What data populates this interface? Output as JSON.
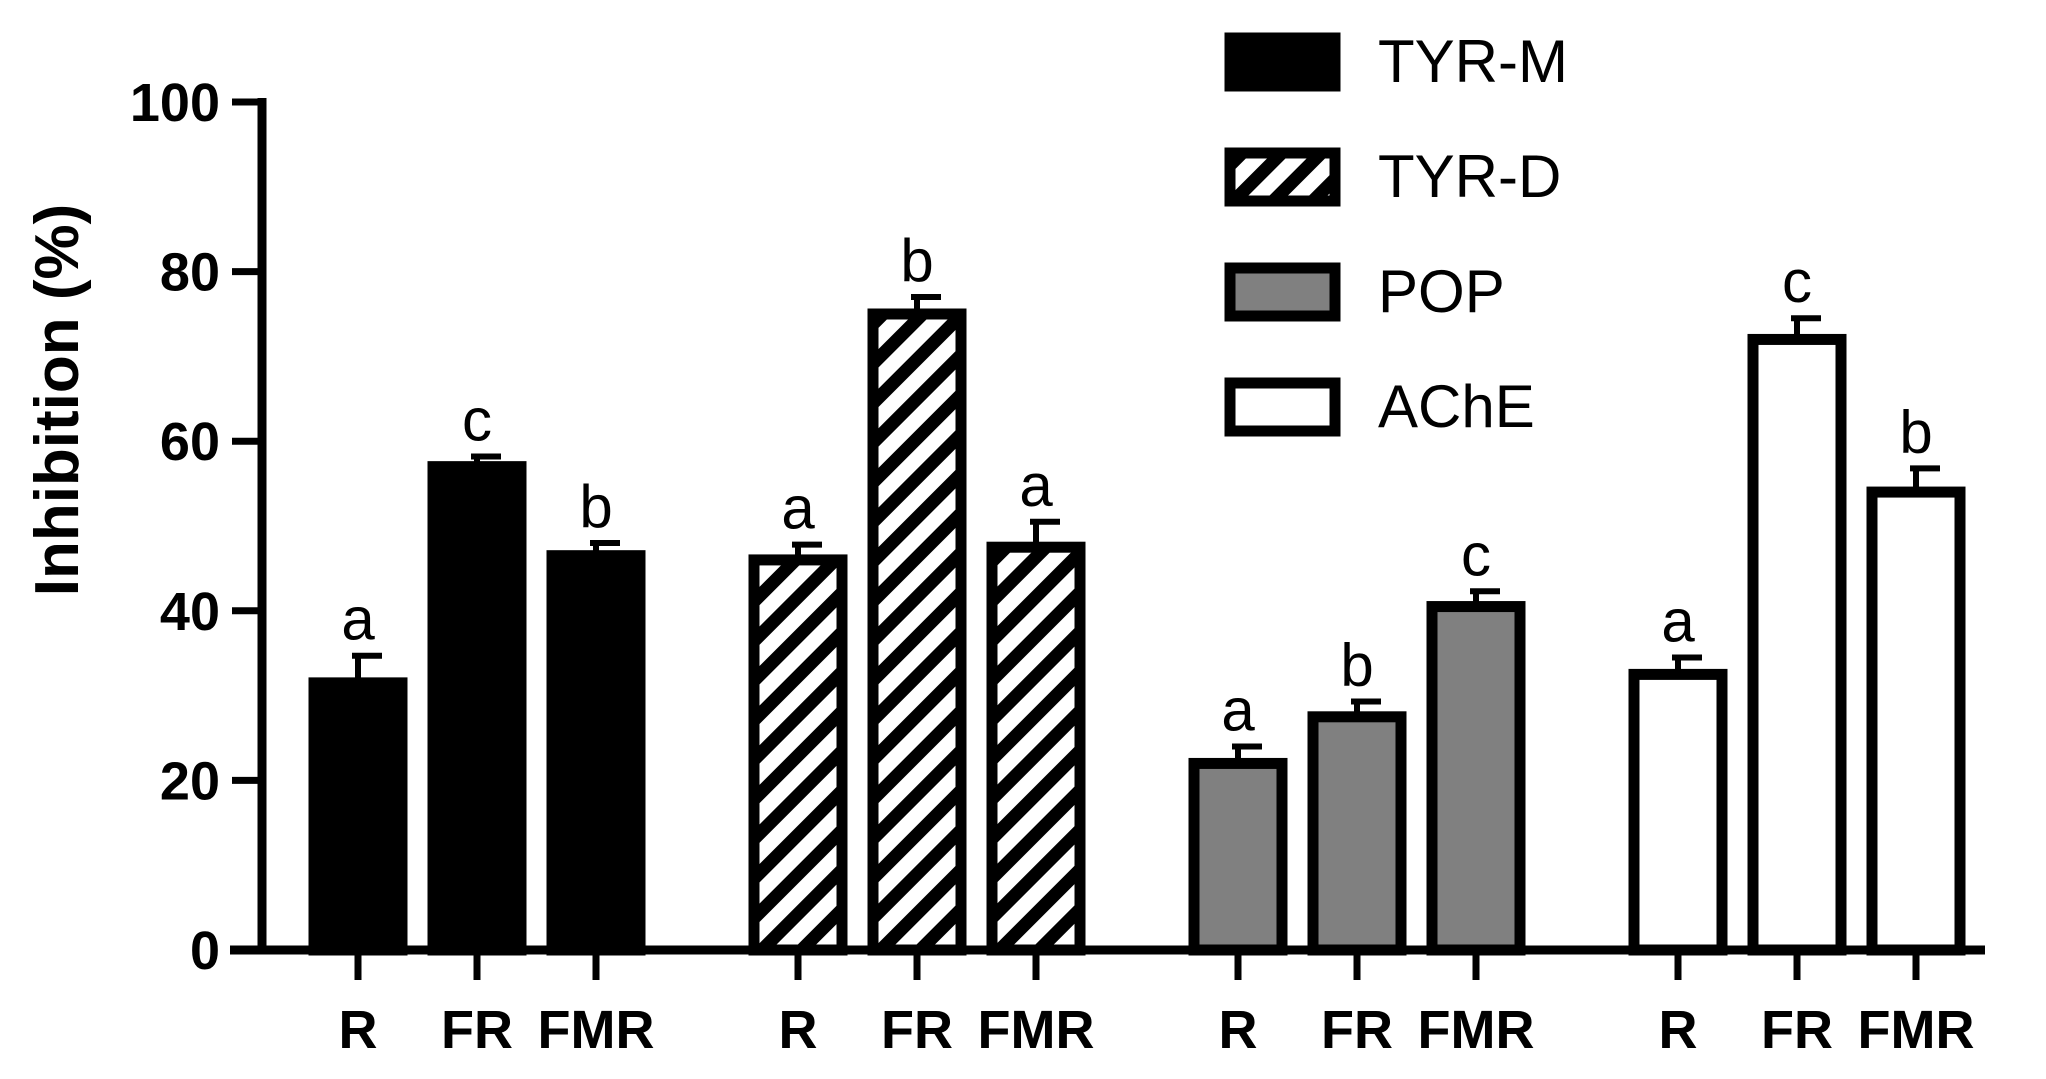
{
  "chart_data": {
    "type": "bar",
    "ylabel": "Inhibition (%)",
    "xlabel": "",
    "ylim": [
      0,
      100
    ],
    "yticks": [
      "0",
      "20",
      "40",
      "60",
      "80",
      "100"
    ],
    "categories": [
      "R",
      "FR",
      "FMR"
    ],
    "legend_position": "top-right",
    "series": [
      {
        "name": "TYR-M",
        "fill": "solid",
        "color": "#000000",
        "values": [
          31.5,
          57,
          46.5
        ],
        "errors": [
          3.2,
          1.2,
          1.5
        ],
        "letters": [
          "a",
          "c",
          "b"
        ]
      },
      {
        "name": "TYR-D",
        "fill": "hatched",
        "color": "#000000",
        "values": [
          46,
          75,
          47.5
        ],
        "errors": [
          1.8,
          2.0,
          3.0
        ],
        "letters": [
          "a",
          "b",
          "a"
        ]
      },
      {
        "name": "POP",
        "fill": "gray",
        "color": "#808080",
        "values": [
          22,
          27.5,
          40.5
        ],
        "errors": [
          2.0,
          1.8,
          1.8
        ],
        "letters": [
          "a",
          "b",
          "c"
        ]
      },
      {
        "name": "AChE",
        "fill": "white",
        "color": "#ffffff",
        "values": [
          32.5,
          72,
          54
        ],
        "errors": [
          2.0,
          2.5,
          2.8
        ],
        "letters": [
          "a",
          "c",
          "b"
        ]
      }
    ]
  }
}
